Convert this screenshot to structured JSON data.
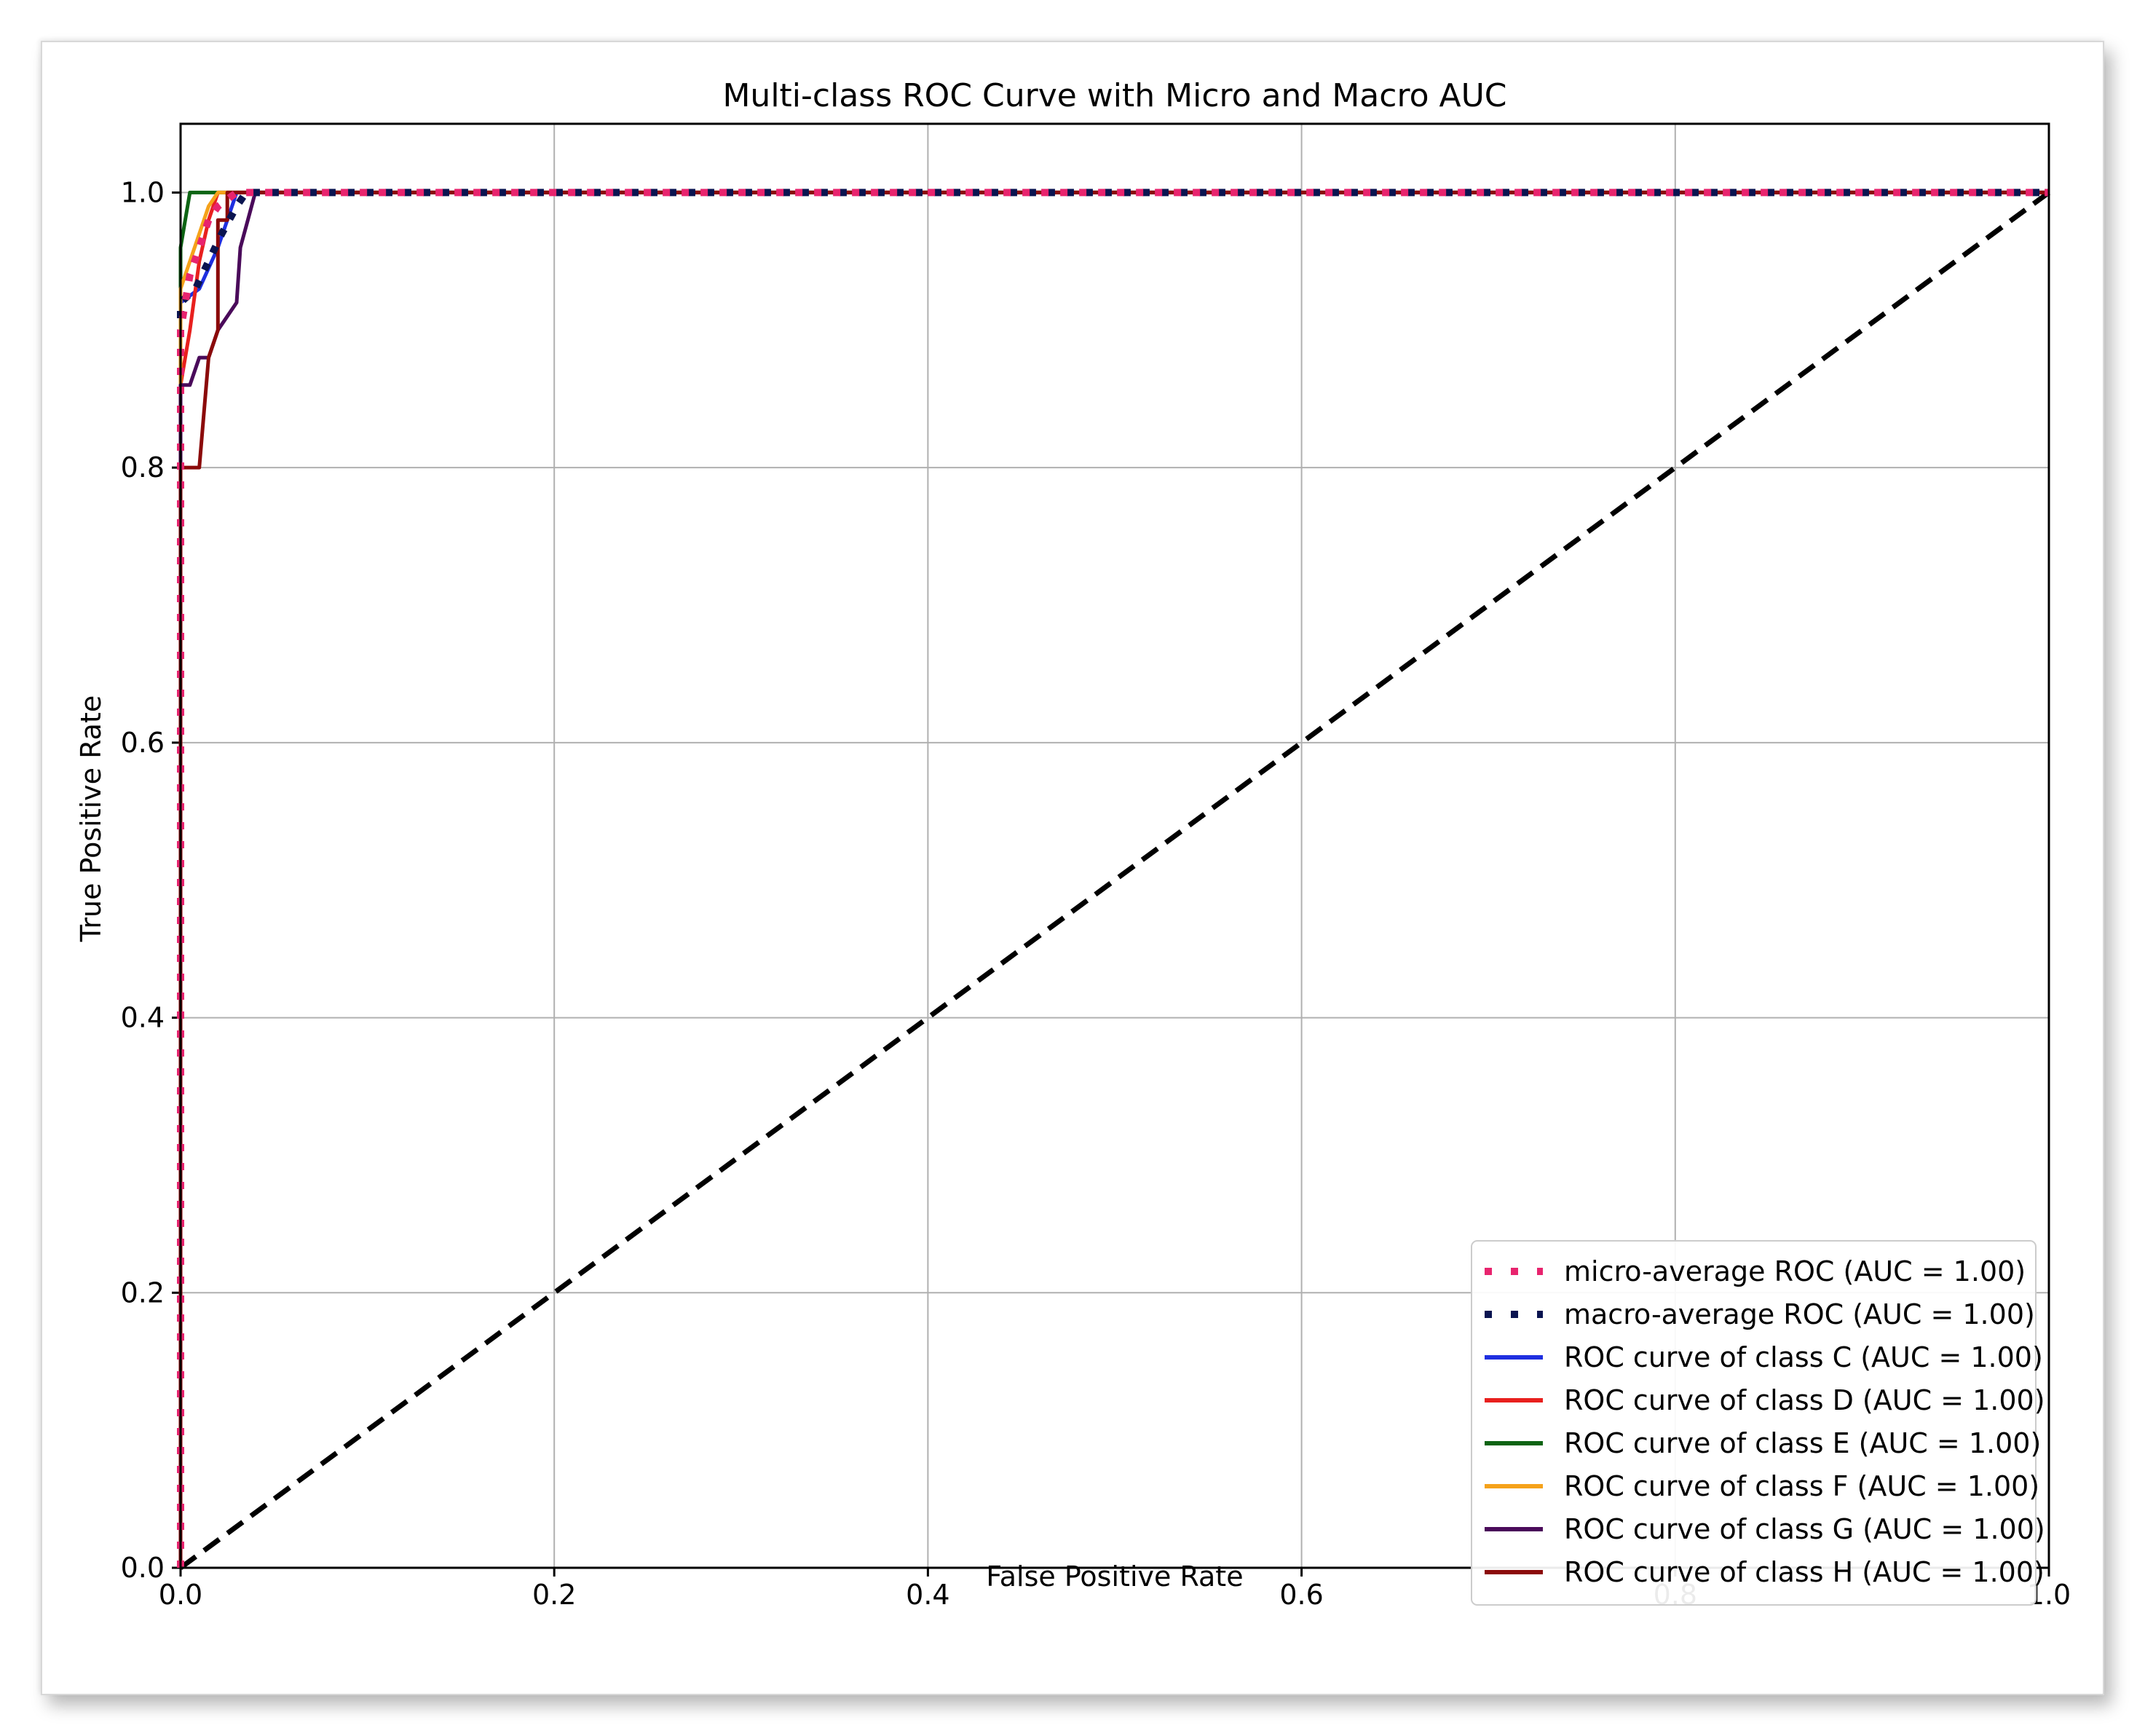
{
  "chart_data": {
    "type": "line",
    "title": "Multi-class ROC Curve with Micro and Macro AUC",
    "xlabel": "False Positive Rate",
    "ylabel": "True Positive Rate",
    "xlim": [
      0.0,
      1.0
    ],
    "ylim": [
      0.0,
      1.05
    ],
    "xticks": [
      0.0,
      0.2,
      0.4,
      0.6,
      0.8,
      1.0
    ],
    "yticks": [
      0.0,
      0.2,
      0.4,
      0.6,
      0.8,
      1.0
    ],
    "xtick_labels": [
      "0.0",
      "0.2",
      "0.4",
      "0.6",
      "0.8",
      "1.0"
    ],
    "ytick_labels": [
      "0.0",
      "0.2",
      "0.4",
      "0.6",
      "0.8",
      "1.0"
    ],
    "grid": true,
    "legend_position": "lower-right",
    "series": [
      {
        "name": "micro-average ROC (AUC = 1.00)",
        "color": "#e8246e",
        "style": "dotted",
        "x": [
          0.0,
          0.0,
          0.005,
          0.01,
          0.015,
          0.02,
          0.03,
          1.0
        ],
        "y": [
          0.0,
          0.9,
          0.94,
          0.96,
          0.98,
          0.99,
          1.0,
          1.0
        ]
      },
      {
        "name": "macro-average ROC (AUC = 1.00)",
        "color": "#0a1450",
        "style": "dotted",
        "x": [
          0.0,
          0.0,
          0.008,
          0.015,
          0.022,
          0.03,
          0.035,
          1.0
        ],
        "y": [
          0.0,
          0.92,
          0.93,
          0.95,
          0.97,
          0.99,
          1.0,
          1.0
        ]
      },
      {
        "name": "ROC curve of class C (AUC = 1.00)",
        "color": "#1f2fe0",
        "style": "solid",
        "x": [
          0.0,
          0.0,
          0.01,
          0.02,
          0.025,
          0.03,
          1.0
        ],
        "y": [
          0.0,
          0.92,
          0.93,
          0.96,
          0.98,
          1.0,
          1.0
        ]
      },
      {
        "name": "ROC curve of class D (AUC = 1.00)",
        "color": "#e8201e",
        "style": "solid",
        "x": [
          0.0,
          0.0,
          0.005,
          0.01,
          0.015,
          0.02,
          1.0
        ],
        "y": [
          0.0,
          0.86,
          0.9,
          0.95,
          0.98,
          1.0,
          1.0
        ]
      },
      {
        "name": "ROC curve of class E (AUC = 1.00)",
        "color": "#0d6413",
        "style": "solid",
        "x": [
          0.0,
          0.0,
          0.005,
          1.0
        ],
        "y": [
          0.0,
          0.96,
          1.0,
          1.0
        ]
      },
      {
        "name": "ROC curve of class F (AUC = 1.00)",
        "color": "#f5a21a",
        "style": "solid",
        "x": [
          0.0,
          0.0,
          0.005,
          0.01,
          0.015,
          0.02,
          1.0
        ],
        "y": [
          0.0,
          0.93,
          0.95,
          0.97,
          0.99,
          1.0,
          1.0
        ]
      },
      {
        "name": "ROC curve of class G (AUC = 1.00)",
        "color": "#4a0a5a",
        "style": "solid",
        "x": [
          0.0,
          0.0,
          0.005,
          0.01,
          0.015,
          0.02,
          0.03,
          0.032,
          0.036,
          0.04,
          1.0
        ],
        "y": [
          0.0,
          0.86,
          0.86,
          0.88,
          0.88,
          0.9,
          0.92,
          0.96,
          0.98,
          1.0,
          1.0
        ]
      },
      {
        "name": "ROC curve of class H (AUC = 1.00)",
        "color": "#8b0a0a",
        "style": "solid",
        "x": [
          0.0,
          0.0,
          0.01,
          0.015,
          0.02,
          0.02,
          0.025,
          0.025,
          0.03,
          1.0
        ],
        "y": [
          0.0,
          0.8,
          0.8,
          0.88,
          0.9,
          0.98,
          0.98,
          1.0,
          1.0,
          1.0
        ]
      },
      {
        "name": "",
        "color": "#000000",
        "style": "dashed",
        "x": [
          0.0,
          1.0
        ],
        "y": [
          0.0,
          1.0
        ]
      }
    ]
  }
}
